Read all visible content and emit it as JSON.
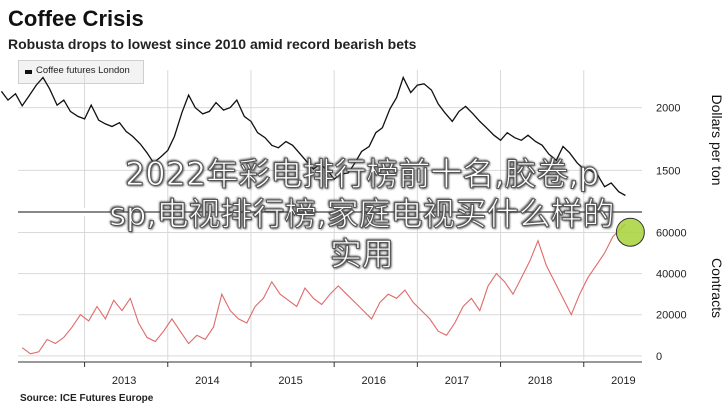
{
  "chart_data": [
    {
      "type": "line",
      "title": "Coffee Crisis",
      "subtitle": "Robusta drops to lowest since 2010 amid record bearish bets",
      "legend": [
        "Coffee futures London"
      ],
      "ylabel": "Dollars per ton",
      "ylim": [
        1200,
        2300
      ],
      "yticks": [
        1500,
        2000
      ],
      "series": [
        {
          "name": "Coffee futures London",
          "color": "#111111",
          "points": [
            [
              2012.0,
              2130
            ],
            [
              2012.08,
              2060
            ],
            [
              2012.17,
              2110
            ],
            [
              2012.25,
              2015
            ],
            [
              2012.33,
              2090
            ],
            [
              2012.42,
              2180
            ],
            [
              2012.5,
              2240
            ],
            [
              2012.58,
              2150
            ],
            [
              2012.67,
              2020
            ],
            [
              2012.75,
              2060
            ],
            [
              2012.83,
              1970
            ],
            [
              2012.92,
              1930
            ],
            [
              2013.0,
              1910
            ],
            [
              2013.08,
              2020
            ],
            [
              2013.17,
              1900
            ],
            [
              2013.25,
              1870
            ],
            [
              2013.33,
              1850
            ],
            [
              2013.42,
              1880
            ],
            [
              2013.5,
              1810
            ],
            [
              2013.58,
              1770
            ],
            [
              2013.67,
              1710
            ],
            [
              2013.75,
              1640
            ],
            [
              2013.83,
              1560
            ],
            [
              2013.92,
              1610
            ],
            [
              2014.0,
              1660
            ],
            [
              2014.08,
              1770
            ],
            [
              2014.17,
              1960
            ],
            [
              2014.25,
              2100
            ],
            [
              2014.33,
              2000
            ],
            [
              2014.42,
              1950
            ],
            [
              2014.5,
              1970
            ],
            [
              2014.58,
              2040
            ],
            [
              2014.67,
              1980
            ],
            [
              2014.75,
              2000
            ],
            [
              2014.83,
              2060
            ],
            [
              2014.92,
              1930
            ],
            [
              2015.0,
              1890
            ],
            [
              2015.08,
              1800
            ],
            [
              2015.17,
              1760
            ],
            [
              2015.25,
              1700
            ],
            [
              2015.33,
              1680
            ],
            [
              2015.42,
              1730
            ],
            [
              2015.5,
              1700
            ],
            [
              2015.58,
              1640
            ],
            [
              2015.67,
              1570
            ],
            [
              2015.75,
              1510
            ],
            [
              2015.83,
              1550
            ],
            [
              2015.92,
              1500
            ],
            [
              2016.0,
              1430
            ],
            [
              2016.08,
              1470
            ],
            [
              2016.17,
              1480
            ],
            [
              2016.25,
              1560
            ],
            [
              2016.33,
              1650
            ],
            [
              2016.42,
              1690
            ],
            [
              2016.5,
              1800
            ],
            [
              2016.58,
              1840
            ],
            [
              2016.67,
              1990
            ],
            [
              2016.75,
              2080
            ],
            [
              2016.83,
              2240
            ],
            [
              2016.92,
              2120
            ],
            [
              2017.0,
              2180
            ],
            [
              2017.08,
              2190
            ],
            [
              2017.17,
              2140
            ],
            [
              2017.25,
              2030
            ],
            [
              2017.33,
              1960
            ],
            [
              2017.42,
              1890
            ],
            [
              2017.5,
              1970
            ],
            [
              2017.58,
              2010
            ],
            [
              2017.67,
              1950
            ],
            [
              2017.75,
              1890
            ],
            [
              2017.83,
              1840
            ],
            [
              2017.92,
              1780
            ],
            [
              2018.0,
              1740
            ],
            [
              2018.08,
              1800
            ],
            [
              2018.17,
              1760
            ],
            [
              2018.25,
              1740
            ],
            [
              2018.33,
              1780
            ],
            [
              2018.42,
              1730
            ],
            [
              2018.5,
              1700
            ],
            [
              2018.58,
              1630
            ],
            [
              2018.67,
              1580
            ],
            [
              2018.75,
              1690
            ],
            [
              2018.83,
              1640
            ],
            [
              2018.92,
              1560
            ],
            [
              2019.0,
              1510
            ],
            [
              2019.08,
              1500
            ],
            [
              2019.17,
              1460
            ],
            [
              2019.25,
              1370
            ],
            [
              2019.33,
              1400
            ],
            [
              2019.42,
              1330
            ],
            [
              2019.5,
              1300
            ]
          ]
        }
      ]
    },
    {
      "type": "line",
      "ylabel": "Contracts",
      "ylim": [
        -2000,
        68000
      ],
      "yticks": [
        0,
        20000,
        40000,
        60000
      ],
      "xlim": [
        2012.2,
        2019.7
      ],
      "xticks": [
        2013,
        2014,
        2015,
        2016,
        2017,
        2018,
        2019
      ],
      "series": [
        {
          "name": "Contracts",
          "color": "#e06a6a",
          "points": [
            [
              2012.25,
              4000
            ],
            [
              2012.35,
              1000
            ],
            [
              2012.45,
              2000
            ],
            [
              2012.55,
              8000
            ],
            [
              2012.65,
              6000
            ],
            [
              2012.75,
              9000
            ],
            [
              2012.85,
              14000
            ],
            [
              2012.95,
              20000
            ],
            [
              2013.05,
              17000
            ],
            [
              2013.15,
              24000
            ],
            [
              2013.25,
              18000
            ],
            [
              2013.35,
              27000
            ],
            [
              2013.45,
              22000
            ],
            [
              2013.55,
              28000
            ],
            [
              2013.65,
              16000
            ],
            [
              2013.75,
              9000
            ],
            [
              2013.85,
              7000
            ],
            [
              2013.95,
              12000
            ],
            [
              2014.05,
              18000
            ],
            [
              2014.15,
              12000
            ],
            [
              2014.25,
              6000
            ],
            [
              2014.35,
              10000
            ],
            [
              2014.45,
              8000
            ],
            [
              2014.55,
              14000
            ],
            [
              2014.65,
              30000
            ],
            [
              2014.75,
              22000
            ],
            [
              2014.85,
              18000
            ],
            [
              2014.95,
              16000
            ],
            [
              2015.05,
              24000
            ],
            [
              2015.15,
              28000
            ],
            [
              2015.25,
              36000
            ],
            [
              2015.35,
              30000
            ],
            [
              2015.45,
              27000
            ],
            [
              2015.55,
              24000
            ],
            [
              2015.65,
              33000
            ],
            [
              2015.75,
              28000
            ],
            [
              2015.85,
              25000
            ],
            [
              2015.95,
              30000
            ],
            [
              2016.05,
              34000
            ],
            [
              2016.15,
              30000
            ],
            [
              2016.25,
              26000
            ],
            [
              2016.35,
              22000
            ],
            [
              2016.45,
              18000
            ],
            [
              2016.55,
              26000
            ],
            [
              2016.65,
              30000
            ],
            [
              2016.75,
              28000
            ],
            [
              2016.85,
              32000
            ],
            [
              2016.95,
              26000
            ],
            [
              2017.05,
              22000
            ],
            [
              2017.15,
              18000
            ],
            [
              2017.25,
              12000
            ],
            [
              2017.35,
              10000
            ],
            [
              2017.45,
              16000
            ],
            [
              2017.55,
              24000
            ],
            [
              2017.65,
              28000
            ],
            [
              2017.75,
              22000
            ],
            [
              2017.85,
              34000
            ],
            [
              2017.95,
              40000
            ],
            [
              2018.05,
              36000
            ],
            [
              2018.15,
              30000
            ],
            [
              2018.25,
              38000
            ],
            [
              2018.35,
              46000
            ],
            [
              2018.45,
              56000
            ],
            [
              2018.55,
              44000
            ],
            [
              2018.65,
              36000
            ],
            [
              2018.75,
              28000
            ],
            [
              2018.85,
              20000
            ],
            [
              2018.95,
              30000
            ],
            [
              2019.05,
              38000
            ],
            [
              2019.15,
              44000
            ],
            [
              2019.25,
              50000
            ],
            [
              2019.35,
              58000
            ],
            [
              2019.45,
              62000
            ],
            [
              2019.5,
              64000
            ]
          ]
        }
      ]
    }
  ],
  "source": "Source: ICE Futures Europe",
  "overlay_text": [
    "2022年彩电排行榜前十名,胶卷,p",
    "sp,电视排行榜,家庭电视买什么样的",
    "实用"
  ],
  "colors": {
    "price": "#111111",
    "contracts": "#e06a6a",
    "marker": "#a7d23a",
    "grid": "#d9d9d9"
  }
}
